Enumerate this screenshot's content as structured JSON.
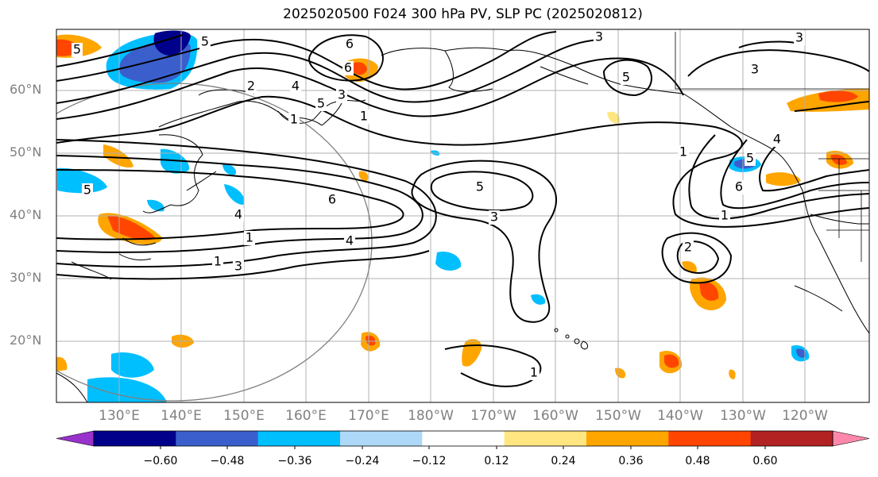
{
  "title": "2025020500 F024 300 hPa PV, SLP PC (2025020812)",
  "lat_labels": [
    "60°N",
    "50°N",
    "40°N",
    "30°N",
    "20°N"
  ],
  "lon_labels": [
    "130°E",
    "140°E",
    "150°E",
    "160°E",
    "170°E",
    "180°W",
    "170°W",
    "160°W",
    "150°W",
    "140°W",
    "130°W",
    "120°W"
  ],
  "colorbar": {
    "tick_labels": [
      "−0.60",
      "−0.48",
      "−0.36",
      "−0.24",
      "−0.12",
      "0.12",
      "0.24",
      "0.36",
      "0.48",
      "0.60"
    ],
    "colors": [
      "#9932cc",
      "#00008b",
      "#3a5fcd",
      "#00bfff",
      "#add8f7",
      "#ffffff",
      "#ffe680",
      "#ffa500",
      "#ff4500",
      "#b22222",
      "#ff88aa"
    ]
  },
  "contour_labels": [
    "5",
    "6",
    "3",
    "3",
    "3",
    "5",
    "2",
    "4",
    "5",
    "3",
    "1",
    "1",
    "5",
    "5",
    "6",
    "5",
    "4",
    "6",
    "3",
    "4",
    "2",
    "1",
    "1",
    "3",
    "1",
    "5",
    "4",
    "6",
    "1",
    "1"
  ]
}
